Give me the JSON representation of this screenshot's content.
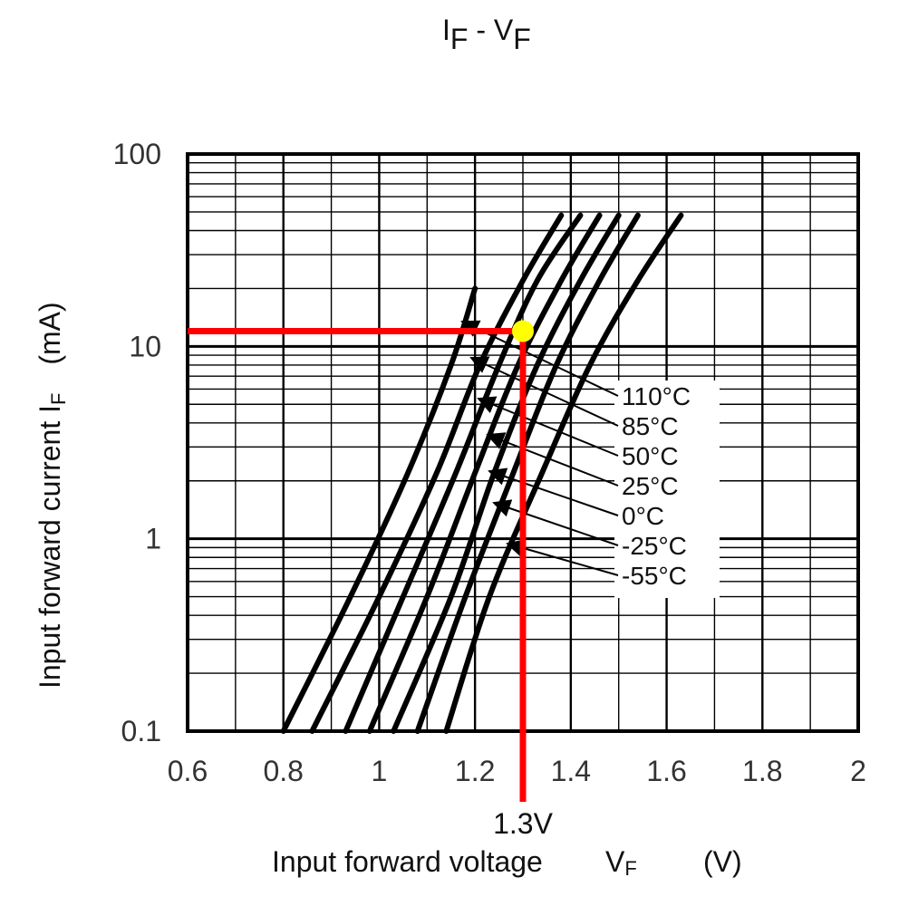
{
  "title": {
    "main_I": "I",
    "sub_F1": "F",
    "dash": " - ",
    "main_V": "V",
    "sub_F2": "F"
  },
  "axes": {
    "ylabel_main": "Input forward current   I",
    "ylabel_sub": "F",
    "ylabel_unit": "(mA)",
    "xlabel_main": "Input forward voltage",
    "xlabel_var": "V",
    "xlabel_sub": "F",
    "xlabel_unit": "(V)"
  },
  "chart_data": {
    "type": "line",
    "title": "IF - VF",
    "xlabel": "Input forward voltage VF (V)",
    "ylabel": "Input forward current IF (mA)",
    "xlim": [
      0.6,
      2.0
    ],
    "ylim": [
      0.1,
      100
    ],
    "yscale": "log",
    "x_ticks": [
      0.6,
      0.8,
      1.0,
      1.2,
      1.4,
      1.6,
      1.8,
      2.0
    ],
    "x_tick_labels": [
      "0.6",
      "0.8",
      "1",
      "1.2",
      "1.4",
      "1.6",
      "1.8",
      "2"
    ],
    "y_ticks": [
      0.1,
      1,
      10,
      100
    ],
    "y_tick_labels": [
      "0.1",
      "1",
      "10",
      "100"
    ],
    "series": [
      {
        "name": "110°C",
        "x": [
          0.8,
          0.94,
          1.06,
          1.15,
          1.2
        ],
        "y": [
          0.1,
          0.5,
          2.2,
          8,
          20
        ]
      },
      {
        "name": "85°C",
        "x": [
          0.86,
          1.0,
          1.12,
          1.21,
          1.3,
          1.38
        ],
        "y": [
          0.1,
          0.5,
          2.2,
          8,
          22,
          48
        ]
      },
      {
        "name": "50°C",
        "x": [
          0.93,
          1.05,
          1.16,
          1.25,
          1.33,
          1.42
        ],
        "y": [
          0.1,
          0.5,
          2.2,
          8,
          22,
          48
        ]
      },
      {
        "name": "25°C",
        "x": [
          0.98,
          1.1,
          1.2,
          1.29,
          1.38,
          1.46
        ],
        "y": [
          0.1,
          0.5,
          2.2,
          8,
          22,
          48
        ]
      },
      {
        "name": "0°C",
        "x": [
          1.03,
          1.15,
          1.24,
          1.33,
          1.42,
          1.5
        ],
        "y": [
          0.1,
          0.5,
          2.2,
          8,
          22,
          48
        ]
      },
      {
        "name": "-25°C",
        "x": [
          1.08,
          1.18,
          1.28,
          1.37,
          1.46,
          1.54
        ],
        "y": [
          0.1,
          0.5,
          2.2,
          8,
          22,
          48
        ]
      },
      {
        "name": "-55°C",
        "x": [
          1.14,
          1.23,
          1.34,
          1.44,
          1.54,
          1.63
        ],
        "y": [
          0.1,
          0.5,
          2.2,
          8,
          22,
          48
        ]
      }
    ],
    "legend_entries": [
      "110°C",
      "85°C",
      "50°C",
      "25°C",
      "0°C",
      "-25°C",
      "-55°C"
    ],
    "highlight": {
      "x": 1.3,
      "y": 12,
      "label": "1.3V",
      "line_color": "#ff0000",
      "marker_color": "#ffff00"
    }
  }
}
